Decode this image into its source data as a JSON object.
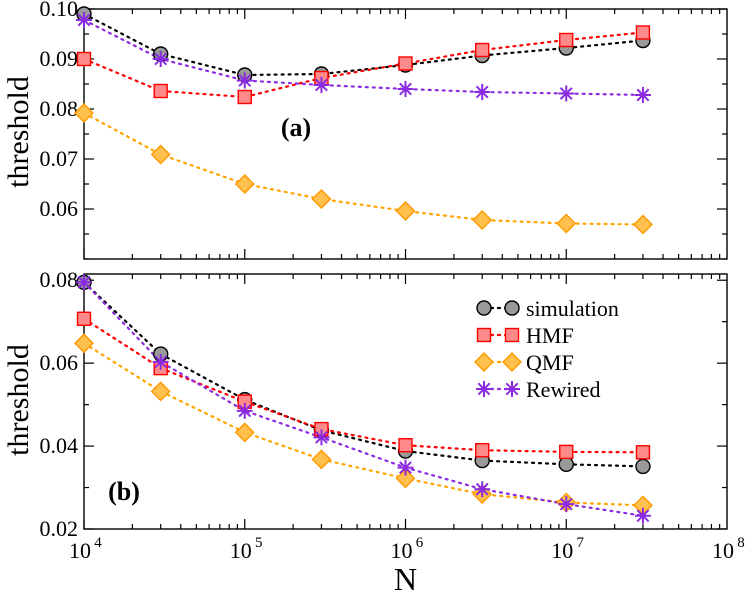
{
  "chart_data": [
    {
      "type": "line",
      "panel_label": "(a)",
      "xscale": "log",
      "xlim": [
        10000,
        100000000
      ],
      "ylim": [
        0.05,
        0.1
      ],
      "ylabel": "threshold",
      "xlabel": "",
      "yticks": [
        0.06,
        0.07,
        0.08,
        0.09,
        0.1
      ],
      "ytick_labels": [
        "0.06",
        "0.07",
        "0.08",
        "0.09",
        "0.10"
      ],
      "x": [
        10000,
        30000,
        100000,
        300000,
        1000000,
        3000000,
        10000000,
        30000000
      ],
      "series": [
        {
          "name": "simulation",
          "marker": "circle",
          "color": "#000000",
          "values": [
            0.099,
            0.091,
            0.0868,
            0.087,
            0.0888,
            0.0907,
            0.0922,
            0.0937
          ]
        },
        {
          "name": "HMF",
          "marker": "square",
          "color": "#ff0000",
          "values": [
            0.09,
            0.0836,
            0.0824,
            0.0862,
            0.0891,
            0.0918,
            0.0938,
            0.0953
          ]
        },
        {
          "name": "QMF",
          "marker": "diamond",
          "color": "#ffa500",
          "values": [
            0.0792,
            0.0709,
            0.065,
            0.062,
            0.0596,
            0.0578,
            0.0571,
            0.0569
          ]
        },
        {
          "name": "Rewired",
          "marker": "asterisk",
          "color": "#8a2be2",
          "values": [
            0.0978,
            0.09,
            0.0857,
            0.0848,
            0.084,
            0.0834,
            0.0831,
            0.0828
          ]
        }
      ]
    },
    {
      "type": "line",
      "panel_label": "(b)",
      "xscale": "log",
      "xlim": [
        10000,
        100000000
      ],
      "ylim": [
        0.02,
        0.0815
      ],
      "ylabel": "threshold",
      "xlabel": "N",
      "yticks": [
        0.02,
        0.04,
        0.06,
        0.08
      ],
      "ytick_labels": [
        "0.02",
        "0.04",
        "0.06",
        "0.08"
      ],
      "xticks": [
        10000,
        100000,
        1000000,
        10000000,
        100000000
      ],
      "xtick_bases": [
        "10",
        "10",
        "10",
        "10",
        "10"
      ],
      "xtick_exps": [
        "4",
        "5",
        "6",
        "7",
        "8"
      ],
      "x": [
        10000,
        30000,
        100000,
        300000,
        1000000,
        3000000,
        10000000,
        30000000
      ],
      "series": [
        {
          "name": "simulation",
          "marker": "circle",
          "color": "#000000",
          "values": [
            0.0795,
            0.0622,
            0.0512,
            0.0438,
            0.0388,
            0.0365,
            0.0356,
            0.0351
          ]
        },
        {
          "name": "HMF",
          "marker": "square",
          "color": "#ff0000",
          "values": [
            0.0707,
            0.0588,
            0.0507,
            0.0441,
            0.0402,
            0.039,
            0.0386,
            0.0385
          ]
        },
        {
          "name": "QMF",
          "marker": "diamond",
          "color": "#ffa500",
          "values": [
            0.0648,
            0.0532,
            0.0433,
            0.0368,
            0.0322,
            0.0284,
            0.0264,
            0.0257
          ]
        },
        {
          "name": "Rewired",
          "marker": "asterisk",
          "color": "#8a2be2",
          "values": [
            0.0795,
            0.0603,
            0.0485,
            0.0421,
            0.0348,
            0.0296,
            0.026,
            0.0232
          ]
        }
      ]
    }
  ],
  "legend": {
    "location": "top-right of panel (b)",
    "entries": [
      "simulation",
      "HMF",
      "QMF",
      "Rewired"
    ]
  }
}
